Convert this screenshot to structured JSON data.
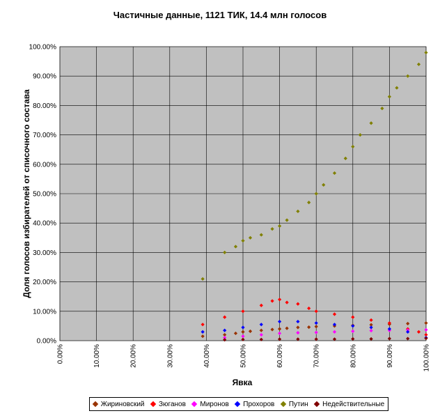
{
  "chart_data": {
    "type": "scatter",
    "title": "Частичные данные, 1121 ТИК, 14.4 млн голосов",
    "xlabel": "Явка",
    "ylabel": "Доля голосов избирателей от списочного состава",
    "xlim": [
      0,
      100
    ],
    "ylim": [
      0,
      100
    ],
    "x_ticks": [
      "0.00%",
      "10.00%",
      "20.00%",
      "30.00%",
      "40.00%",
      "50.00%",
      "60.00%",
      "70.00%",
      "80.00%",
      "90.00%",
      "100.00%"
    ],
    "y_ticks": [
      "0.00%",
      "10.00%",
      "20.00%",
      "30.00%",
      "40.00%",
      "50.00%",
      "60.00%",
      "70.00%",
      "80.00%",
      "90.00%",
      "100.00%"
    ],
    "grid": true,
    "legend_position": "bottom",
    "plot_background": "#c0c0c0",
    "series": [
      {
        "name": "Жириновский",
        "color": "#993300",
        "points": [
          [
            39,
            1.5
          ],
          [
            45,
            2
          ],
          [
            48,
            2.5
          ],
          [
            50,
            3
          ],
          [
            52,
            3.2
          ],
          [
            55,
            3.5
          ],
          [
            58,
            3.8
          ],
          [
            60,
            4
          ],
          [
            62,
            4.2
          ],
          [
            65,
            4.5
          ],
          [
            68,
            4.6
          ],
          [
            70,
            4.8
          ],
          [
            75,
            5
          ],
          [
            80,
            5.2
          ],
          [
            85,
            5.4
          ],
          [
            90,
            5.6
          ],
          [
            95,
            5.8
          ],
          [
            100,
            6
          ]
        ]
      },
      {
        "name": "Зюганов",
        "color": "#ff0000",
        "points": [
          [
            39,
            5.5
          ],
          [
            45,
            8
          ],
          [
            50,
            10
          ],
          [
            55,
            12
          ],
          [
            58,
            13.5
          ],
          [
            60,
            14
          ],
          [
            62,
            13
          ],
          [
            65,
            12.5
          ],
          [
            68,
            11
          ],
          [
            70,
            10
          ],
          [
            75,
            9
          ],
          [
            80,
            8
          ],
          [
            85,
            7
          ],
          [
            90,
            6
          ],
          [
            95,
            4
          ],
          [
            98,
            3
          ],
          [
            100,
            2
          ]
        ]
      },
      {
        "name": "Миронов",
        "color": "#ff00ff",
        "points": [
          [
            45,
            1
          ],
          [
            50,
            1.5
          ],
          [
            55,
            2
          ],
          [
            60,
            2.5
          ],
          [
            65,
            2.7
          ],
          [
            70,
            2.8
          ],
          [
            75,
            3
          ],
          [
            80,
            3.2
          ],
          [
            85,
            3.4
          ],
          [
            90,
            3.5
          ],
          [
            95,
            3.6
          ],
          [
            100,
            3.7
          ]
        ]
      },
      {
        "name": "Прохоров",
        "color": "#0000ff",
        "points": [
          [
            39,
            3
          ],
          [
            45,
            3.5
          ],
          [
            50,
            4.5
          ],
          [
            55,
            5.5
          ],
          [
            60,
            6.5
          ],
          [
            65,
            6.5
          ],
          [
            70,
            6
          ],
          [
            75,
            5.5
          ],
          [
            80,
            5
          ],
          [
            85,
            4.5
          ],
          [
            90,
            4
          ],
          [
            95,
            3
          ],
          [
            100,
            1
          ]
        ]
      },
      {
        "name": "Путин",
        "color": "#808000",
        "points": [
          [
            39,
            21
          ],
          [
            45,
            30
          ],
          [
            48,
            32
          ],
          [
            50,
            34
          ],
          [
            52,
            35
          ],
          [
            55,
            36
          ],
          [
            58,
            38
          ],
          [
            60,
            39
          ],
          [
            62,
            41
          ],
          [
            65,
            44
          ],
          [
            68,
            47
          ],
          [
            70,
            50
          ],
          [
            72,
            53
          ],
          [
            75,
            57
          ],
          [
            78,
            62
          ],
          [
            80,
            66
          ],
          [
            82,
            70
          ],
          [
            85,
            74
          ],
          [
            88,
            79
          ],
          [
            90,
            83
          ],
          [
            92,
            86
          ],
          [
            95,
            90
          ],
          [
            98,
            94
          ],
          [
            100,
            98
          ]
        ]
      },
      {
        "name": "Недействительные",
        "color": "#800000",
        "points": [
          [
            45,
            0.3
          ],
          [
            50,
            0.4
          ],
          [
            55,
            0.4
          ],
          [
            60,
            0.5
          ],
          [
            65,
            0.5
          ],
          [
            70,
            0.5
          ],
          [
            75,
            0.5
          ],
          [
            80,
            0.6
          ],
          [
            85,
            0.6
          ],
          [
            90,
            0.7
          ],
          [
            95,
            0.7
          ],
          [
            100,
            0.8
          ]
        ]
      }
    ]
  }
}
